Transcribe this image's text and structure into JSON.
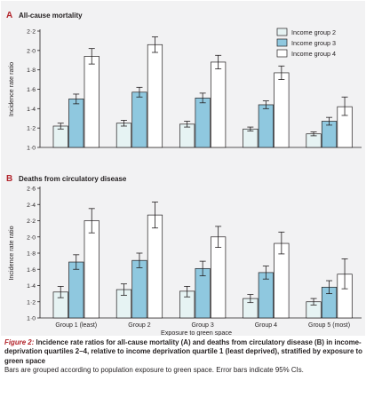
{
  "chart_data": [
    {
      "type": "bar",
      "panel": "A",
      "title": "All-cause mortality",
      "ylabel": "Incidence rate ratio",
      "xlabel": "",
      "ylim": [
        1.0,
        2.2
      ],
      "yticks": [
        "1·0",
        "1·2",
        "1·4",
        "1·6",
        "1·8",
        "2·0",
        "2·2"
      ],
      "categories": [
        "",
        "",
        "",
        "",
        ""
      ],
      "legend_position": "top-right",
      "series": [
        {
          "name": "Income group 2",
          "color": "#e6f3f3",
          "values": [
            1.22,
            1.25,
            1.24,
            1.19,
            1.14
          ],
          "ci_low": [
            1.19,
            1.22,
            1.21,
            1.17,
            1.12
          ],
          "ci_high": [
            1.25,
            1.28,
            1.27,
            1.21,
            1.16
          ]
        },
        {
          "name": "Income group 3",
          "color": "#8fc8df",
          "values": [
            1.5,
            1.57,
            1.51,
            1.44,
            1.27
          ],
          "ci_low": [
            1.45,
            1.52,
            1.46,
            1.4,
            1.23
          ],
          "ci_high": [
            1.55,
            1.62,
            1.56,
            1.48,
            1.31
          ]
        },
        {
          "name": "Income group 4",
          "color": "#ffffff",
          "values": [
            1.94,
            2.06,
            1.88,
            1.77,
            1.42
          ],
          "ci_low": [
            1.86,
            1.98,
            1.81,
            1.7,
            1.33
          ],
          "ci_high": [
            2.02,
            2.14,
            1.95,
            1.84,
            1.52
          ]
        }
      ]
    },
    {
      "type": "bar",
      "panel": "B",
      "title": "Deaths from circulatory disease",
      "ylabel": "Incidence rate ratio",
      "xlabel": "Exposure to green space",
      "ylim": [
        1.0,
        2.6
      ],
      "yticks": [
        "1·0",
        "1·2",
        "1·4",
        "1·6",
        "1·8",
        "2·0",
        "2·2",
        "2·4",
        "2·6"
      ],
      "categories": [
        "Group 1 (least)",
        "Group 2",
        "Group 3",
        "Group 4",
        "Group 5 (most)"
      ],
      "series": [
        {
          "name": "Income group 2",
          "color": "#e6f3f3",
          "values": [
            1.32,
            1.35,
            1.33,
            1.24,
            1.2
          ],
          "ci_low": [
            1.25,
            1.28,
            1.26,
            1.19,
            1.16
          ],
          "ci_high": [
            1.39,
            1.42,
            1.39,
            1.29,
            1.24
          ]
        },
        {
          "name": "Income group 3",
          "color": "#8fc8df",
          "values": [
            1.69,
            1.71,
            1.61,
            1.56,
            1.38
          ],
          "ci_low": [
            1.6,
            1.62,
            1.52,
            1.48,
            1.3
          ],
          "ci_high": [
            1.78,
            1.8,
            1.7,
            1.64,
            1.46
          ]
        },
        {
          "name": "Income group 4",
          "color": "#ffffff",
          "values": [
            2.2,
            2.27,
            2.0,
            1.92,
            1.54
          ],
          "ci_low": [
            2.05,
            2.11,
            1.87,
            1.79,
            1.36
          ],
          "ci_high": [
            2.35,
            2.43,
            2.13,
            2.06,
            1.73
          ]
        }
      ]
    }
  ],
  "caption": {
    "label": "Figure 2:",
    "title": " Incidence rate ratios for all-cause mortality (A) and deaths from circulatory disease (B) in income-deprivation quartiles 2–4, relative to income deprivation quartile 1 (least deprived), stratified by exposure to green space",
    "note": "Bars are grouped according to population exposure to green space. Error bars indicate 95% CIs."
  },
  "colors": {
    "panel_background": "#f2f2f3",
    "panel_letter": "#b2242b",
    "axis": "#231f20"
  }
}
